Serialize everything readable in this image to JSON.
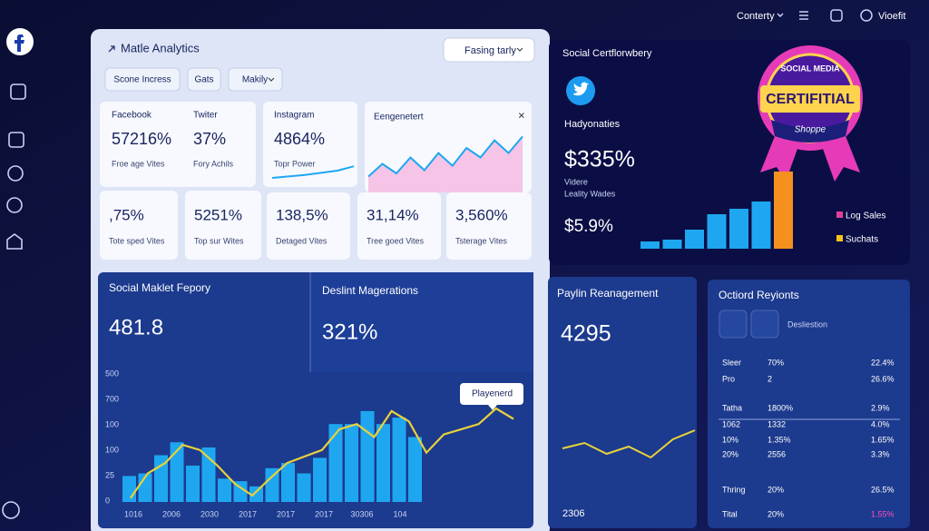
{
  "header": {
    "menu": "Conterty",
    "user": "Vioefit"
  },
  "dashboard": {
    "title": "Matle Analytics",
    "filter": "Fasing tarly",
    "tabs": [
      "Scone Incress",
      "Gats",
      "Makily"
    ]
  },
  "top_cards": [
    {
      "label": "Facebook",
      "value": "57216%",
      "caption": "Froe age Vites"
    },
    {
      "label": "Twiter",
      "value": "37%",
      "caption": "Fory Achils"
    },
    {
      "label": "Instagram",
      "value": "4864%",
      "caption": "Topr Power",
      "trend": [
        10,
        14,
        18,
        24,
        30,
        42
      ]
    }
  ],
  "engagement": {
    "title": "Eengenetert",
    "trend": [
      25,
      45,
      30,
      55,
      35,
      62,
      42,
      70,
      55,
      82,
      62,
      88
    ]
  },
  "stat_cards": [
    {
      "value": ",75%",
      "caption": "Tote sped Vites"
    },
    {
      "value": "5251%",
      "caption": "Top sur Wites"
    },
    {
      "value": "138,5%",
      "caption": "Detaged Vites"
    },
    {
      "value": "31,14%",
      "caption": "Tree goed Vites"
    },
    {
      "value": "3,560%",
      "caption": "Tsterage Vites"
    }
  ],
  "certification": {
    "title": "Social Certflorwbery",
    "subtitle": "Hadyonaties",
    "value": "$335%",
    "note1": "Videre",
    "note2": "Leality Wades",
    "value2": "$5.9%",
    "badge_top": "SOCIAL MEDIA",
    "badge_main": "CERTIFITIAL",
    "badge_ribbon": "Shoppe",
    "bars": [
      8,
      10,
      21,
      38,
      44,
      52,
      85
    ],
    "bar_colors": [
      "#1ea7f0",
      "#1ea7f0",
      "#1ea7f0",
      "#1ea7f0",
      "#1ea7f0",
      "#1ea7f0",
      "#f5901e"
    ],
    "legend": [
      {
        "name": "Log Sales",
        "color": "#e0409a"
      },
      {
        "name": "Suchats",
        "color": "#f5c518"
      }
    ]
  },
  "market": {
    "title": "Social Maklet Fepory",
    "value": "481.8",
    "title2": "Deslint Magerations",
    "value2": "321%",
    "tooltip": "Playenerd",
    "ylim": [
      0,
      100
    ],
    "y_labels": [
      "500",
      "700",
      "100",
      "100",
      "25",
      "0"
    ],
    "x_labels": [
      "1016",
      "2006",
      "2030",
      "2017",
      "2017",
      "2017",
      "30306",
      "104"
    ],
    "bar_color": "#1ea7f0",
    "line_color": "#e8d23a",
    "bars": [
      20,
      22,
      36,
      46,
      28,
      42,
      18,
      16,
      12,
      26,
      30,
      22,
      34,
      60,
      60,
      70,
      60,
      65,
      50
    ],
    "line": [
      3,
      22,
      30,
      44,
      40,
      28,
      14,
      5,
      18,
      30,
      35,
      40,
      56,
      60,
      50,
      70,
      62,
      38,
      52,
      56,
      60,
      72,
      64
    ]
  },
  "payment": {
    "title": "Paylin Reanagement",
    "value": "4295",
    "footer": "2306",
    "trend": [
      36,
      42,
      30,
      38,
      26,
      46,
      56
    ]
  },
  "regions": {
    "title": "Octiord Reyionts",
    "label": "Desliestion",
    "rows": [
      [
        "Sleer",
        "70%",
        "22.4%"
      ],
      [
        "Pro",
        "2",
        "26.6%"
      ],
      [
        "Tatha",
        "1800%",
        "2.9%"
      ],
      [
        "1062",
        "1332",
        "4.0%"
      ],
      [
        "10%",
        "1.35%",
        "1.65%"
      ],
      [
        "20%",
        "2556",
        "3.3%"
      ],
      [
        "Thring",
        "20%",
        "26.5%"
      ],
      [
        "Tital",
        "20%",
        "1.55%"
      ]
    ]
  }
}
